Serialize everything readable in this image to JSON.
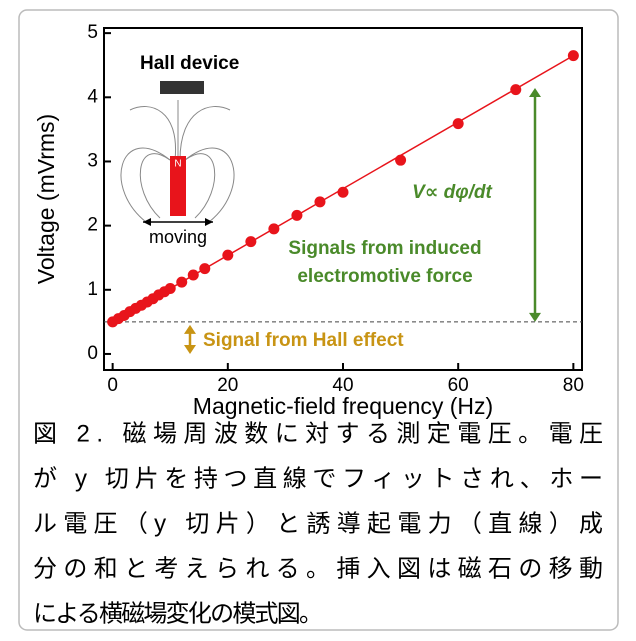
{
  "chart_data": {
    "type": "scatter",
    "xlabel": "Magnetic-field frequency (Hz)",
    "ylabel": "Voltage (mVrms)",
    "x": [
      0,
      1,
      2,
      3,
      4,
      5,
      6,
      7,
      8,
      9,
      10,
      12,
      14,
      16,
      20,
      24,
      28,
      32,
      36,
      40,
      50,
      60,
      70,
      80
    ],
    "series": [
      {
        "color": "#e8141b",
        "values": [
          0.5,
          0.55,
          0.6,
          0.66,
          0.71,
          0.76,
          0.81,
          0.86,
          0.92,
          0.97,
          1.02,
          1.12,
          1.23,
          1.33,
          1.54,
          1.75,
          1.95,
          2.16,
          2.37,
          2.52,
          3.02,
          3.59,
          4.12,
          4.65
        ]
      }
    ],
    "fit": {
      "x": [
        0,
        80
      ],
      "values": [
        0.5,
        4.65
      ],
      "color": "#e8141b"
    },
    "baseline": 0.5,
    "xlim": [
      -1.5,
      81.5
    ],
    "ylim": [
      -0.25,
      5.08
    ],
    "xticks": [
      0,
      20,
      40,
      60,
      80
    ],
    "yticks": [
      0,
      1,
      2,
      3,
      4,
      5
    ],
    "annotations": {
      "formula": "V∝ dφ/dt",
      "emf": [
        "Signals from induced",
        "electromotive force"
      ],
      "hall": "Signal from Hall effect"
    },
    "inset": {
      "title": "Hall device",
      "pole": "N",
      "motion": "moving"
    }
  },
  "caption": [
    "図 2. 磁場周波数に対する測定電圧。電圧",
    "が y 切片を持つ直線でフィットされ、ホー",
    "ル電圧（y 切片）と誘導起電力（直線）成",
    "分の和と考えられる。挿入図は磁石の移動",
    "による横磁場変化の模式図。"
  ]
}
